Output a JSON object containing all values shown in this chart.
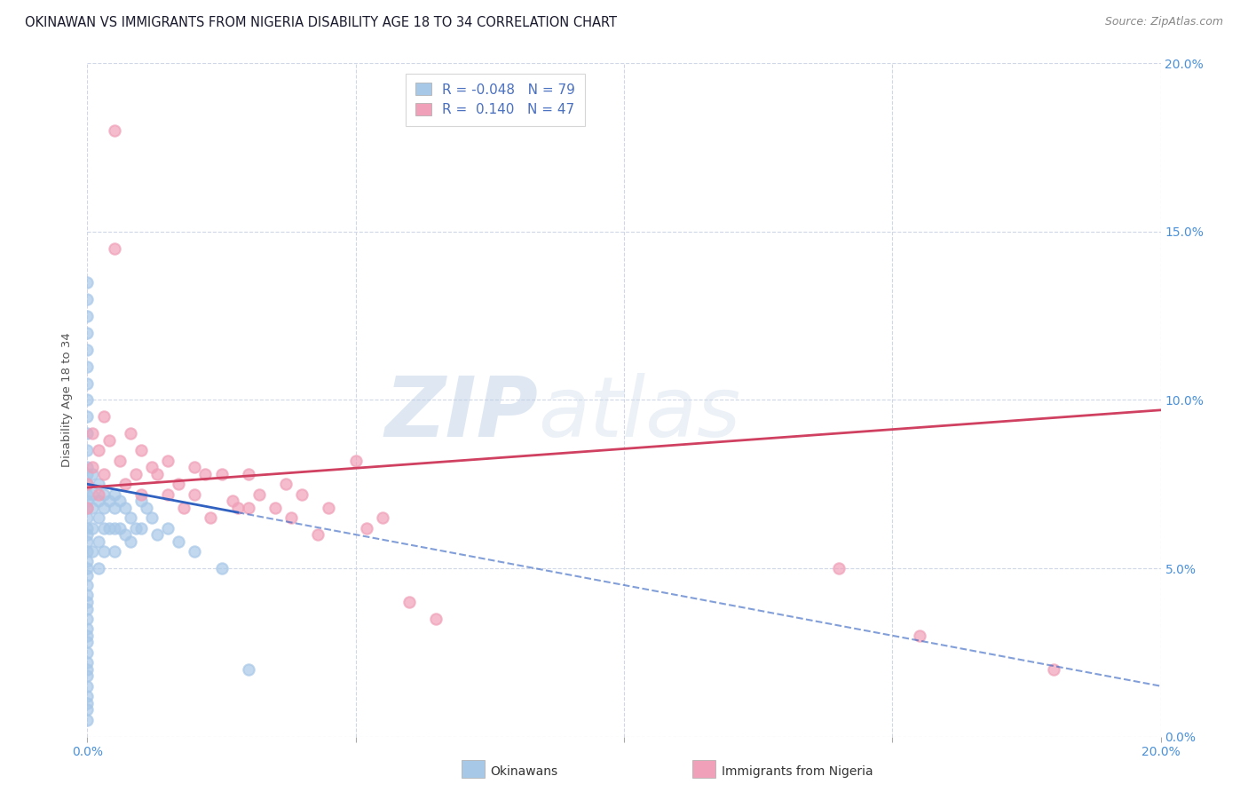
{
  "title": "OKINAWAN VS IMMIGRANTS FROM NIGERIA DISABILITY AGE 18 TO 34 CORRELATION CHART",
  "source": "Source: ZipAtlas.com",
  "xlim": [
    0.0,
    0.2
  ],
  "ylim": [
    0.0,
    0.2
  ],
  "watermark_zip": "ZIP",
  "watermark_atlas": "atlas",
  "legend_okinawan_R": "-0.048",
  "legend_okinawan_N": "79",
  "legend_nigeria_R": "0.140",
  "legend_nigeria_N": "47",
  "okinawan_color": "#a8c8e8",
  "nigeria_color": "#f0a0b8",
  "okinawan_line_color": "#3060c0",
  "nigeria_line_color": "#d04060",
  "okinawan_scatter_x": [
    0.0,
    0.0,
    0.0,
    0.0,
    0.0,
    0.0,
    0.0,
    0.0,
    0.0,
    0.0,
    0.0,
    0.0,
    0.0,
    0.0,
    0.0,
    0.0,
    0.0,
    0.0,
    0.0,
    0.0,
    0.0,
    0.0,
    0.0,
    0.0,
    0.0,
    0.0,
    0.0,
    0.0,
    0.0,
    0.0,
    0.0,
    0.0,
    0.0,
    0.0,
    0.0,
    0.0,
    0.0,
    0.0,
    0.0,
    0.0,
    0.0,
    0.0,
    0.001,
    0.001,
    0.001,
    0.001,
    0.001,
    0.002,
    0.002,
    0.002,
    0.002,
    0.002,
    0.003,
    0.003,
    0.003,
    0.003,
    0.004,
    0.004,
    0.005,
    0.005,
    0.005,
    0.005,
    0.006,
    0.006,
    0.007,
    0.007,
    0.008,
    0.008,
    0.009,
    0.01,
    0.01,
    0.011,
    0.012,
    0.013,
    0.015,
    0.017,
    0.02,
    0.025,
    0.03
  ],
  "okinawan_scatter_y": [
    0.135,
    0.13,
    0.125,
    0.12,
    0.115,
    0.11,
    0.105,
    0.1,
    0.095,
    0.09,
    0.085,
    0.08,
    0.078,
    0.075,
    0.072,
    0.07,
    0.068,
    0.065,
    0.062,
    0.06,
    0.058,
    0.055,
    0.052,
    0.05,
    0.048,
    0.045,
    0.042,
    0.04,
    0.038,
    0.035,
    0.032,
    0.03,
    0.028,
    0.025,
    0.022,
    0.02,
    0.018,
    0.015,
    0.012,
    0.01,
    0.008,
    0.005,
    0.078,
    0.072,
    0.068,
    0.062,
    0.055,
    0.075,
    0.07,
    0.065,
    0.058,
    0.05,
    0.072,
    0.068,
    0.062,
    0.055,
    0.07,
    0.062,
    0.072,
    0.068,
    0.062,
    0.055,
    0.07,
    0.062,
    0.068,
    0.06,
    0.065,
    0.058,
    0.062,
    0.07,
    0.062,
    0.068,
    0.065,
    0.06,
    0.062,
    0.058,
    0.055,
    0.05,
    0.02
  ],
  "nigeria_scatter_x": [
    0.0,
    0.0,
    0.001,
    0.001,
    0.002,
    0.002,
    0.003,
    0.003,
    0.004,
    0.005,
    0.005,
    0.006,
    0.007,
    0.008,
    0.009,
    0.01,
    0.01,
    0.012,
    0.013,
    0.015,
    0.015,
    0.017,
    0.018,
    0.02,
    0.02,
    0.022,
    0.023,
    0.025,
    0.027,
    0.028,
    0.03,
    0.03,
    0.032,
    0.035,
    0.037,
    0.038,
    0.04,
    0.043,
    0.045,
    0.05,
    0.052,
    0.055,
    0.06,
    0.065,
    0.14,
    0.155,
    0.18
  ],
  "nigeria_scatter_y": [
    0.075,
    0.068,
    0.09,
    0.08,
    0.085,
    0.072,
    0.095,
    0.078,
    0.088,
    0.18,
    0.145,
    0.082,
    0.075,
    0.09,
    0.078,
    0.085,
    0.072,
    0.08,
    0.078,
    0.082,
    0.072,
    0.075,
    0.068,
    0.08,
    0.072,
    0.078,
    0.065,
    0.078,
    0.07,
    0.068,
    0.078,
    0.068,
    0.072,
    0.068,
    0.075,
    0.065,
    0.072,
    0.06,
    0.068,
    0.082,
    0.062,
    0.065,
    0.04,
    0.035,
    0.05,
    0.03,
    0.02
  ],
  "background_color": "#ffffff",
  "grid_color": "#d0d8e8",
  "ylabel": "Disability Age 18 to 34"
}
